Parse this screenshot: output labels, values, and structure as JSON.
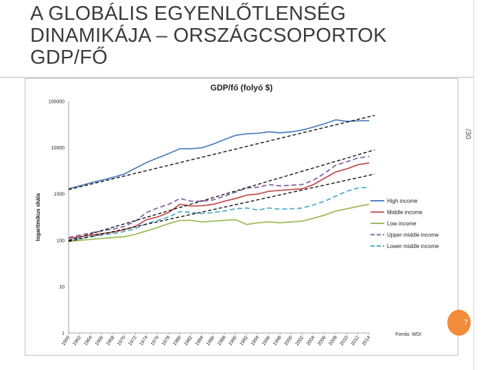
{
  "slide": {
    "title_lines": [
      "A GLOBÁLIS EGYENLŐTLENSÉG",
      "DINAMIKÁJA –  ORSZÁGCSOPORTOK",
      "GDP/FŐ"
    ],
    "side_number": "/30",
    "badge_number": "7"
  },
  "chart_data": {
    "type": "line",
    "title": "GDP/fő (folyó $)",
    "ylabel": "logaritmikus skála",
    "yscale": "log",
    "ylim": [
      1,
      100000
    ],
    "yticks": [
      "100000",
      "10000",
      "1000",
      "100",
      "10",
      "1"
    ],
    "ytick_values": [
      100000,
      10000,
      1000,
      100,
      10,
      1
    ],
    "xlim": [
      1960,
      2014
    ],
    "xticks": [
      "1960",
      "1962",
      "1964",
      "1966",
      "1968",
      "1970",
      "1972",
      "1974",
      "1976",
      "1978",
      "1980",
      "1982",
      "1984",
      "1986",
      "1988",
      "1990",
      "1992",
      "1994",
      "1996",
      "1998",
      "2000",
      "2002",
      "2004",
      "2006",
      "2008",
      "2010",
      "2012",
      "2014"
    ],
    "source": "Forrás: WDI",
    "legend_position": "right",
    "x": [
      1960,
      1962,
      1964,
      1966,
      1968,
      1970,
      1972,
      1974,
      1976,
      1978,
      1980,
      1982,
      1984,
      1986,
      1988,
      1990,
      1992,
      1994,
      1996,
      1998,
      2000,
      2002,
      2004,
      2006,
      2008,
      2010,
      2012,
      2014
    ],
    "series": [
      {
        "name": "High income",
        "color": "#4f81bd",
        "dashed": false,
        "values": [
          1300,
          1500,
          1750,
          2000,
          2300,
          2700,
          3600,
          4800,
          6000,
          7500,
          9500,
          9500,
          10000,
          12000,
          15000,
          18500,
          20000,
          20500,
          22000,
          21000,
          22000,
          24000,
          28000,
          33000,
          40000,
          37000,
          38000,
          38500
        ]
      },
      {
        "name": "Middle income",
        "color": "#c0504d",
        "dashed": false,
        "values": [
          110,
          120,
          130,
          140,
          150,
          170,
          200,
          280,
          320,
          400,
          600,
          550,
          560,
          600,
          700,
          800,
          950,
          1000,
          1150,
          1200,
          1250,
          1300,
          1600,
          2200,
          3000,
          3500,
          4300,
          4700
        ]
      },
      {
        "name": "Low income",
        "color": "#9bbb59",
        "dashed": false,
        "values": [
          95,
          100,
          105,
          110,
          115,
          120,
          135,
          160,
          190,
          230,
          270,
          270,
          250,
          260,
          270,
          280,
          220,
          240,
          250,
          240,
          250,
          260,
          300,
          350,
          430,
          480,
          540,
          600
        ]
      },
      {
        "name": "Upper middle income",
        "color": "#8064a2",
        "dashed": true,
        "values": [
          115,
          130,
          145,
          160,
          175,
          200,
          260,
          400,
          500,
          600,
          800,
          700,
          700,
          750,
          900,
          1100,
          1350,
          1400,
          1600,
          1500,
          1550,
          1600,
          2000,
          2800,
          4200,
          5000,
          6000,
          6500
        ]
      },
      {
        "name": "Lower middle income",
        "color": "#4bacc6",
        "dashed": true,
        "values": [
          100,
          110,
          120,
          130,
          140,
          155,
          180,
          230,
          270,
          320,
          420,
          400,
          380,
          400,
          430,
          480,
          500,
          450,
          500,
          470,
          480,
          500,
          580,
          700,
          900,
          1150,
          1350,
          1400
        ]
      }
    ]
  }
}
